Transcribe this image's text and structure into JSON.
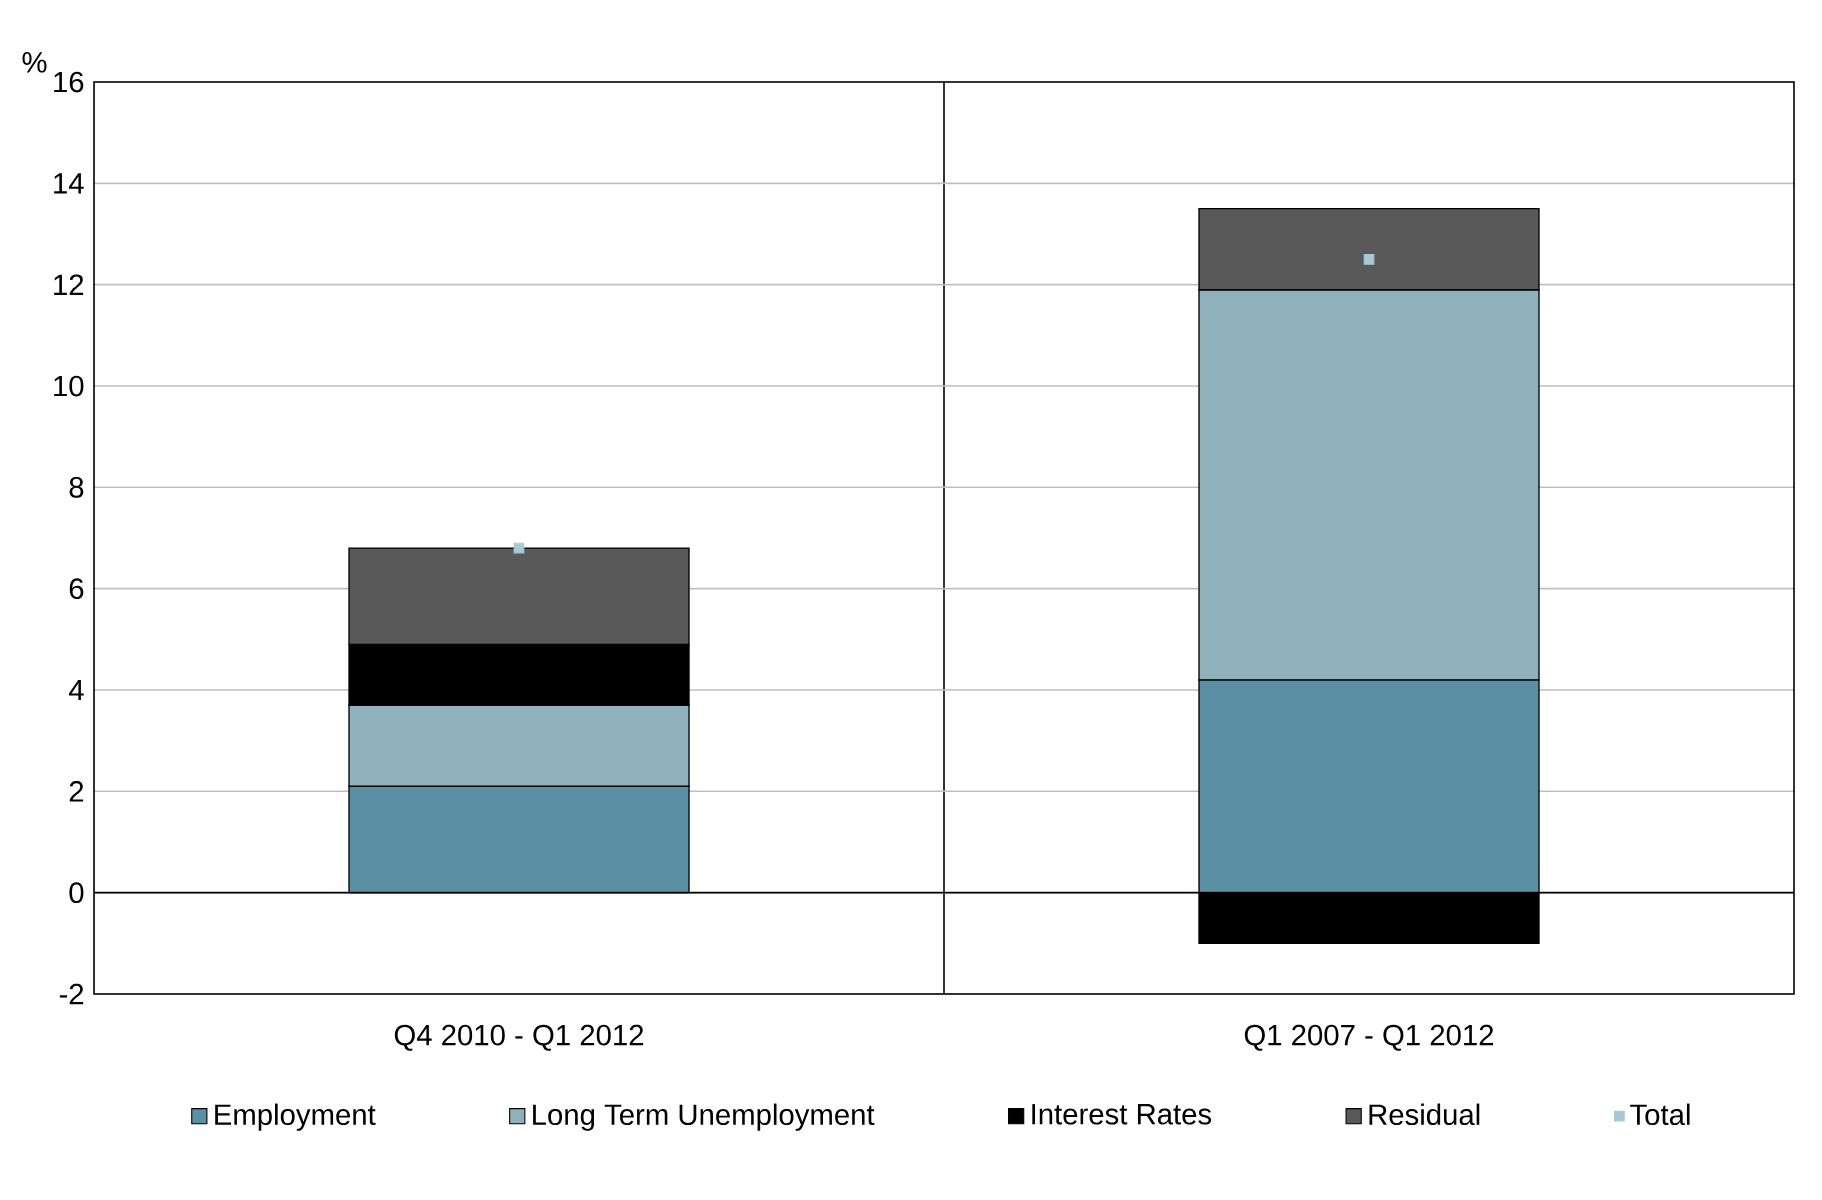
{
  "chart_data": {
    "type": "bar",
    "stacked": true,
    "ylabel": "%",
    "categories": [
      "Q4 2010 - Q1 2012",
      "Q1 2007 - Q1 2012"
    ],
    "series": [
      {
        "name": "Employment",
        "color": "#5b8fa3",
        "values": [
          2.1,
          4.2
        ]
      },
      {
        "name": "Long Term Unemployment",
        "color": "#8fb1bc",
        "values": [
          1.6,
          7.7
        ]
      },
      {
        "name": "Interest Rates",
        "color": "#000000",
        "values": [
          1.2,
          -1.0
        ]
      },
      {
        "name": "Residual",
        "color": "#595959",
        "values": [
          1.9,
          1.6
        ]
      },
      {
        "name": "Total",
        "type": "scatter",
        "marker": "square",
        "color": "#a8c8d8",
        "values": [
          6.8,
          12.5
        ]
      }
    ],
    "ylim": [
      -2,
      16
    ],
    "yticks": [
      -2,
      0,
      2,
      4,
      6,
      8,
      10,
      12,
      14,
      16
    ],
    "grid": true,
    "legend": "bottom"
  }
}
